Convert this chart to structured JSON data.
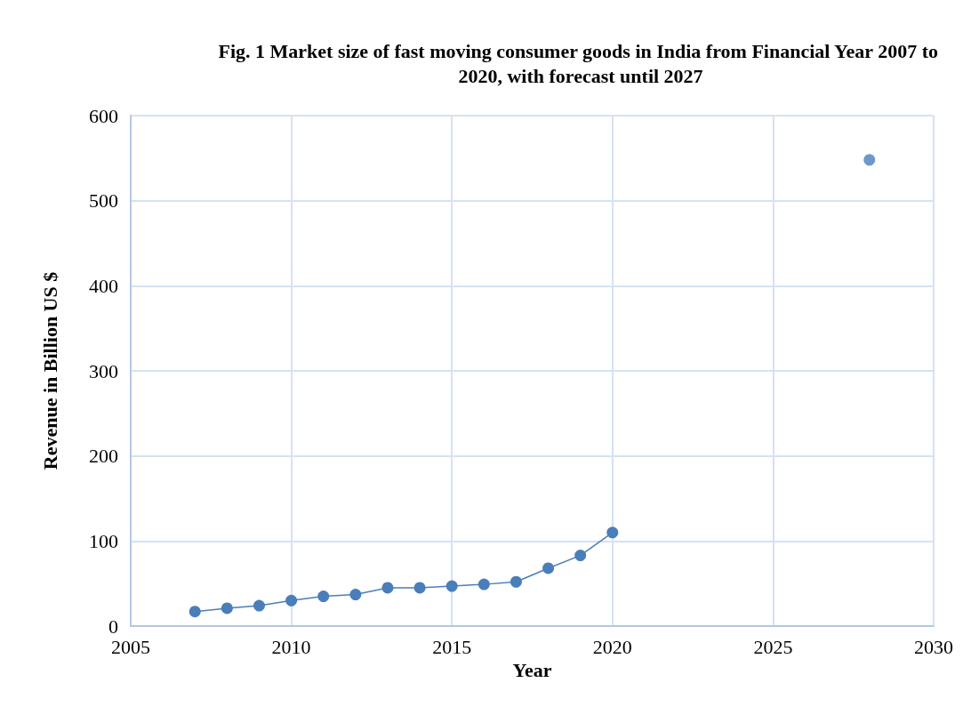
{
  "chart_data": {
    "type": "line",
    "title": "Fig. 1 Market size of fast moving consumer goods in India from Financial Year 2007 to 2020, with forecast until 2027",
    "xlabel": "Year",
    "ylabel": "Revenue in Billion US $",
    "series": [
      {
        "color": "#4a7ebb",
        "x": [
          2007,
          2008,
          2009,
          2010,
          2011,
          2012,
          2013,
          2014,
          2015,
          2016,
          2017,
          2018,
          2019,
          2020
        ],
        "values": [
          17,
          21,
          24,
          30,
          35,
          37,
          45,
          45,
          47,
          49,
          52,
          68,
          83,
          110
        ]
      },
      {
        "type": "scatter",
        "color": "#4a7ebb",
        "x": [
          2028
        ],
        "values": [
          548
        ]
      }
    ],
    "xlim": [
      2005,
      2030
    ],
    "xticks": [
      2005,
      2010,
      2015,
      2020,
      2025,
      2030
    ],
    "ylim": [
      0,
      600
    ],
    "yticks": [
      0,
      100,
      200,
      300,
      400,
      500,
      600
    ],
    "grid": true,
    "marker": "circle",
    "line_style": "solid"
  }
}
